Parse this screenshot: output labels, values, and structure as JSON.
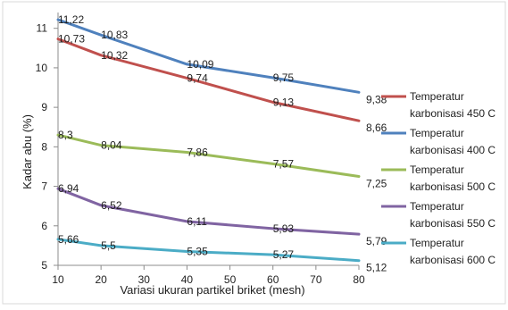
{
  "chart_data": {
    "type": "line",
    "xlabel": "Variasi ukuran partikel briket (mesh)",
    "ylabel": "Kadar abu (%)",
    "x": [
      10,
      20,
      40,
      60,
      80
    ],
    "xticks": [
      "10",
      "20",
      "30",
      "40",
      "50",
      "60",
      "70",
      "80"
    ],
    "xlim": [
      10,
      80
    ],
    "yticks": [
      "5",
      "6",
      "7",
      "8",
      "9",
      "10",
      "11"
    ],
    "ylim": [
      5,
      11.4
    ],
    "grid": false,
    "legend": "right",
    "series": [
      {
        "name": "Temperatur karbonisasi 450 C",
        "legend_lines": [
          "Temperatur",
          "karbonisasi 450 C"
        ],
        "color": "#c0504d",
        "values": [
          10.73,
          10.32,
          9.74,
          9.13,
          8.66
        ],
        "labels": [
          "10,73",
          "10,32",
          "9,74",
          "9,13",
          "8,66"
        ]
      },
      {
        "name": "Temperatur karbonisasi 400 C",
        "legend_lines": [
          "Temperatur",
          "karbonisasi 400 C"
        ],
        "color": "#4f81bd",
        "values": [
          11.22,
          10.83,
          10.09,
          9.75,
          9.38
        ],
        "labels": [
          "11,22",
          "10,83",
          "10,09",
          "9,75",
          "9,38"
        ]
      },
      {
        "name": "Temperatur karbonisasi 500 C",
        "legend_lines": [
          "Temperatur",
          "karbonisasi 500 C"
        ],
        "color": "#9bbb59",
        "values": [
          8.3,
          8.04,
          7.86,
          7.57,
          7.25
        ],
        "labels": [
          "8,3",
          "8,04",
          "7,86",
          "7,57",
          "7,25"
        ]
      },
      {
        "name": "Temperatur karbonisasi 550 C",
        "legend_lines": [
          "Temperatur",
          "karbonisasi 550 C"
        ],
        "color": "#8064a2",
        "values": [
          6.94,
          6.52,
          6.11,
          5.93,
          5.79
        ],
        "labels": [
          "6,94",
          "6,52",
          "6,11",
          "5,93",
          "5,79"
        ]
      },
      {
        "name": "Temperatur karbonisasi 600 C",
        "legend_lines": [
          "Temperatur",
          "karbonisasi 600 C"
        ],
        "color": "#4bacc6",
        "values": [
          5.66,
          5.5,
          5.35,
          5.27,
          5.12
        ],
        "labels": [
          "5,66",
          "5,5",
          "5,35",
          "5,27",
          "5,12"
        ]
      }
    ]
  }
}
